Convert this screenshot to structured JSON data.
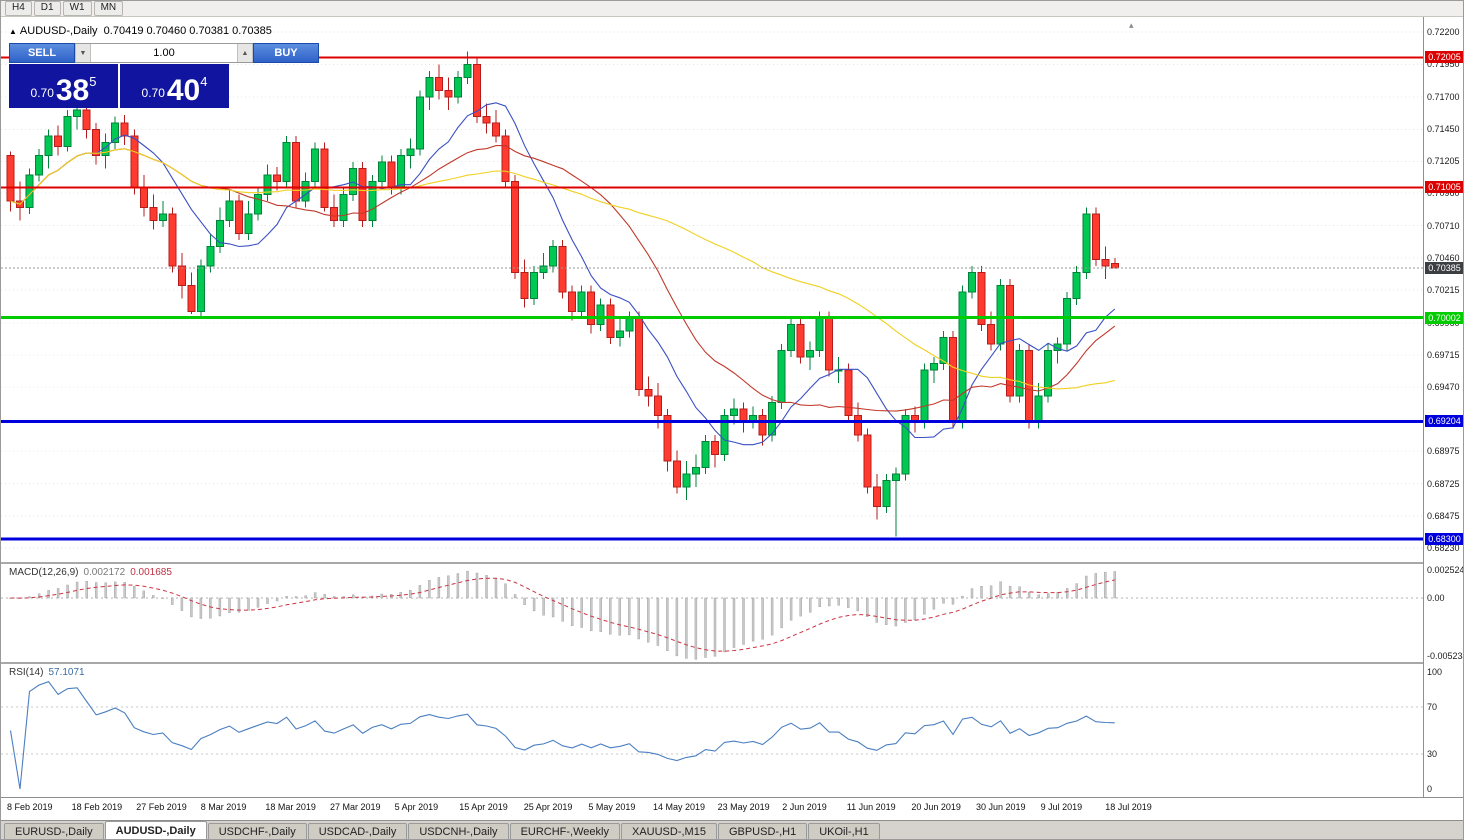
{
  "toolbar": {
    "items": [
      "H4",
      "D1",
      "W1",
      "MN"
    ]
  },
  "chart": {
    "title_symbol": "AUDUSD-,Daily",
    "title_ohlc": "0.70419 0.70460 0.70381 0.70385"
  },
  "icons": {
    "title_bullet": "▲",
    "volume_down": "▼",
    "volume_up": "▲",
    "chart_shift": "▴"
  },
  "trade_panel": {
    "sell_label": "SELL",
    "buy_label": "BUY",
    "volume": "1.00",
    "sell_price_prefix": "0.70",
    "sell_price_big": "38",
    "sell_price_sup": "5",
    "buy_price_prefix": "0.70",
    "buy_price_big": "40",
    "buy_price_sup": "4"
  },
  "chart_data": {
    "type": "candlestick",
    "symbol": "AUDUSD",
    "timeframe": "Daily",
    "colors": {
      "candle_up": "#00c853",
      "candle_up_border": "#00823a",
      "candle_down": "#ff3b30",
      "candle_down_border": "#b71c1c",
      "grid": "#e4e4e4"
    },
    "price_axis_ticks": [
      "0.72200",
      "0.71950",
      "0.71700",
      "0.71450",
      "0.71205",
      "0.70960",
      "0.70710",
      "0.70460",
      "0.70215",
      "0.69960",
      "0.69715",
      "0.69470",
      "0.68975",
      "0.68725",
      "0.68475",
      "0.68230"
    ],
    "hlines": [
      {
        "value": 0.72005,
        "label": "0.72005",
        "color": "#dd0000",
        "width": 2
      },
      {
        "value": 0.71005,
        "label": "0.71005",
        "color": "#dd0000",
        "width": 2
      },
      {
        "value": 0.70002,
        "label": "0.70002",
        "color": "#00cc00",
        "width": 3
      },
      {
        "value": 0.69204,
        "label": "0.69204",
        "color": "#0000dd",
        "width": 3
      },
      {
        "value": 0.683,
        "label": "0.68300",
        "color": "#0000dd",
        "width": 3
      }
    ],
    "current_price": {
      "value": 0.70385,
      "label": "0.70385",
      "color": "#3c3f41"
    },
    "moving_averages": [
      {
        "period": 10,
        "color": "#3a4fc4"
      },
      {
        "period": 21,
        "color": "#c0392b"
      },
      {
        "period": 50,
        "color": "#f0d020"
      }
    ],
    "candles": [
      [
        0.7125,
        0.7128,
        0.7082,
        0.709
      ],
      [
        0.709,
        0.7105,
        0.7075,
        0.7085
      ],
      [
        0.7085,
        0.7115,
        0.708,
        0.711
      ],
      [
        0.711,
        0.713,
        0.7105,
        0.7125
      ],
      [
        0.7125,
        0.7145,
        0.7115,
        0.714
      ],
      [
        0.714,
        0.7148,
        0.7125,
        0.7132
      ],
      [
        0.7132,
        0.716,
        0.7128,
        0.7155
      ],
      [
        0.7155,
        0.7165,
        0.7145,
        0.716
      ],
      [
        0.716,
        0.7168,
        0.7138,
        0.7145
      ],
      [
        0.7145,
        0.715,
        0.7118,
        0.7125
      ],
      [
        0.7125,
        0.7142,
        0.7115,
        0.7135
      ],
      [
        0.7135,
        0.7155,
        0.713,
        0.715
      ],
      [
        0.715,
        0.7156,
        0.7133,
        0.714
      ],
      [
        0.714,
        0.7145,
        0.7095,
        0.71
      ],
      [
        0.71,
        0.711,
        0.7078,
        0.7085
      ],
      [
        0.7085,
        0.7095,
        0.7068,
        0.7075
      ],
      [
        0.7075,
        0.709,
        0.707,
        0.708
      ],
      [
        0.708,
        0.7085,
        0.7035,
        0.704
      ],
      [
        0.704,
        0.705,
        0.7015,
        0.7025
      ],
      [
        0.7025,
        0.7035,
        0.7003,
        0.7005
      ],
      [
        0.7005,
        0.7045,
        0.7,
        0.704
      ],
      [
        0.704,
        0.7065,
        0.7035,
        0.7055
      ],
      [
        0.7055,
        0.7085,
        0.705,
        0.7075
      ],
      [
        0.7075,
        0.7098,
        0.707,
        0.709
      ],
      [
        0.709,
        0.7095,
        0.706,
        0.7065
      ],
      [
        0.7065,
        0.709,
        0.706,
        0.708
      ],
      [
        0.708,
        0.71,
        0.7075,
        0.7095
      ],
      [
        0.7095,
        0.7118,
        0.709,
        0.711
      ],
      [
        0.711,
        0.7116,
        0.7098,
        0.7105
      ],
      [
        0.7105,
        0.714,
        0.71,
        0.7135
      ],
      [
        0.7135,
        0.714,
        0.7085,
        0.709
      ],
      [
        0.709,
        0.7112,
        0.7085,
        0.7105
      ],
      [
        0.7105,
        0.7135,
        0.71,
        0.713
      ],
      [
        0.713,
        0.7135,
        0.7082,
        0.7085
      ],
      [
        0.7085,
        0.7095,
        0.707,
        0.7075
      ],
      [
        0.7075,
        0.71,
        0.707,
        0.7095
      ],
      [
        0.7095,
        0.712,
        0.709,
        0.7115
      ],
      [
        0.7115,
        0.712,
        0.707,
        0.7075
      ],
      [
        0.7075,
        0.711,
        0.707,
        0.7105
      ],
      [
        0.7105,
        0.7125,
        0.71,
        0.712
      ],
      [
        0.712,
        0.7125,
        0.7095,
        0.71
      ],
      [
        0.71,
        0.713,
        0.7095,
        0.7125
      ],
      [
        0.7125,
        0.7138,
        0.7115,
        0.713
      ],
      [
        0.713,
        0.7175,
        0.7125,
        0.717
      ],
      [
        0.717,
        0.719,
        0.716,
        0.7185
      ],
      [
        0.7185,
        0.7195,
        0.7168,
        0.7175
      ],
      [
        0.7175,
        0.7185,
        0.716,
        0.717
      ],
      [
        0.717,
        0.719,
        0.7165,
        0.7185
      ],
      [
        0.7185,
        0.7205,
        0.718,
        0.7195
      ],
      [
        0.7195,
        0.72,
        0.715,
        0.7155
      ],
      [
        0.7155,
        0.7165,
        0.7142,
        0.715
      ],
      [
        0.715,
        0.716,
        0.7135,
        0.714
      ],
      [
        0.714,
        0.7145,
        0.71,
        0.7105
      ],
      [
        0.7105,
        0.711,
        0.703,
        0.7035
      ],
      [
        0.7035,
        0.7045,
        0.7008,
        0.7015
      ],
      [
        0.7015,
        0.704,
        0.701,
        0.7035
      ],
      [
        0.7035,
        0.705,
        0.703,
        0.704
      ],
      [
        0.704,
        0.706,
        0.7035,
        0.7055
      ],
      [
        0.7055,
        0.706,
        0.7015,
        0.702
      ],
      [
        0.702,
        0.7025,
        0.6998,
        0.7005
      ],
      [
        0.7005,
        0.7025,
        0.7,
        0.702
      ],
      [
        0.702,
        0.7025,
        0.6988,
        0.6995
      ],
      [
        0.6995,
        0.7015,
        0.699,
        0.701
      ],
      [
        0.701,
        0.7015,
        0.698,
        0.6985
      ],
      [
        0.6985,
        0.7,
        0.6978,
        0.699
      ],
      [
        0.699,
        0.7005,
        0.6985,
        0.7
      ],
      [
        0.7,
        0.7005,
        0.694,
        0.6945
      ],
      [
        0.6945,
        0.6955,
        0.6932,
        0.694
      ],
      [
        0.694,
        0.695,
        0.6915,
        0.6925
      ],
      [
        0.6925,
        0.693,
        0.6882,
        0.689
      ],
      [
        0.689,
        0.6898,
        0.6865,
        0.687
      ],
      [
        0.687,
        0.689,
        0.686,
        0.688
      ],
      [
        0.688,
        0.6895,
        0.687,
        0.6885
      ],
      [
        0.6885,
        0.691,
        0.688,
        0.6905
      ],
      [
        0.6905,
        0.691,
        0.6885,
        0.6895
      ],
      [
        0.6895,
        0.693,
        0.689,
        0.6925
      ],
      [
        0.6925,
        0.6938,
        0.6918,
        0.693
      ],
      [
        0.693,
        0.6935,
        0.6912,
        0.692
      ],
      [
        0.692,
        0.6932,
        0.6915,
        0.6925
      ],
      [
        0.6925,
        0.693,
        0.6902,
        0.691
      ],
      [
        0.691,
        0.694,
        0.6905,
        0.6935
      ],
      [
        0.6935,
        0.698,
        0.693,
        0.6975
      ],
      [
        0.6975,
        0.7,
        0.697,
        0.6995
      ],
      [
        0.6995,
        0.7,
        0.6965,
        0.697
      ],
      [
        0.697,
        0.6982,
        0.696,
        0.6975
      ],
      [
        0.6975,
        0.7005,
        0.697,
        0.7
      ],
      [
        0.7,
        0.7005,
        0.6955,
        0.696
      ],
      [
        0.696,
        0.697,
        0.695,
        0.696
      ],
      [
        0.696,
        0.6965,
        0.692,
        0.6925
      ],
      [
        0.6925,
        0.6935,
        0.6905,
        0.691
      ],
      [
        0.691,
        0.6915,
        0.6865,
        0.687
      ],
      [
        0.687,
        0.688,
        0.6845,
        0.6855
      ],
      [
        0.6855,
        0.688,
        0.685,
        0.6875
      ],
      [
        0.6875,
        0.6885,
        0.6832,
        0.688
      ],
      [
        0.688,
        0.693,
        0.6875,
        0.6925
      ],
      [
        0.6925,
        0.6932,
        0.6912,
        0.692
      ],
      [
        0.692,
        0.6965,
        0.6915,
        0.696
      ],
      [
        0.696,
        0.697,
        0.695,
        0.6965
      ],
      [
        0.6965,
        0.699,
        0.696,
        0.6985
      ],
      [
        0.6985,
        0.699,
        0.6915,
        0.692
      ],
      [
        0.692,
        0.7025,
        0.6915,
        0.702
      ],
      [
        0.702,
        0.704,
        0.7015,
        0.7035
      ],
      [
        0.7035,
        0.704,
        0.699,
        0.6995
      ],
      [
        0.6995,
        0.7005,
        0.6975,
        0.698
      ],
      [
        0.698,
        0.703,
        0.6975,
        0.7025
      ],
      [
        0.7025,
        0.703,
        0.6935,
        0.694
      ],
      [
        0.694,
        0.698,
        0.6935,
        0.6975
      ],
      [
        0.6975,
        0.698,
        0.6915,
        0.692
      ],
      [
        0.692,
        0.695,
        0.6915,
        0.694
      ],
      [
        0.694,
        0.698,
        0.6935,
        0.6975
      ],
      [
        0.6975,
        0.6985,
        0.6965,
        0.698
      ],
      [
        0.698,
        0.702,
        0.6975,
        0.7015
      ],
      [
        0.7015,
        0.704,
        0.701,
        0.7035
      ],
      [
        0.7035,
        0.7085,
        0.703,
        0.708
      ],
      [
        0.708,
        0.7085,
        0.704,
        0.7045
      ],
      [
        0.7045,
        0.7055,
        0.703,
        0.704
      ],
      [
        0.70419,
        0.7046,
        0.70381,
        0.70385
      ]
    ],
    "date_labels": [
      "8 Feb 2019",
      "18 Feb 2019",
      "27 Feb 2019",
      "8 Mar 2019",
      "18 Mar 2019",
      "27 Mar 2019",
      "5 Apr 2019",
      "15 Apr 2019",
      "25 Apr 2019",
      "5 May 2019",
      "14 May 2019",
      "23 May 2019",
      "2 Jun 2019",
      "11 Jun 2019",
      "20 Jun 2019",
      "30 Jun 2019",
      "9 Jul 2019",
      "18 Jul 2019"
    ],
    "macd": {
      "label": "MACD(12,26,9)",
      "value_main": "0.002172",
      "value_signal": "0.001685",
      "axis_max": 0.002524,
      "axis_min": -0.005234,
      "axis_max_label": "0.002524",
      "axis_zero_label": "0.00",
      "axis_min_label": "-0.005234",
      "histogram_color": "#c9c9c9",
      "signal_color": "#cc3344"
    },
    "rsi": {
      "label": "RSI(14)",
      "value": "57.1071",
      "line_color": "#4a7fc1",
      "axis_labels": [
        "100",
        "70",
        "30",
        "0"
      ],
      "axis_values": [
        100,
        70,
        30,
        0
      ],
      "levels": [
        70,
        30
      ]
    }
  },
  "tabs": [
    {
      "label": "EURUSD-,Daily",
      "active": false
    },
    {
      "label": "AUDUSD-,Daily",
      "active": true
    },
    {
      "label": "USDCHF-,Daily",
      "active": false
    },
    {
      "label": "USDCAD-,Daily",
      "active": false
    },
    {
      "label": "USDCNH-,Daily",
      "active": false
    },
    {
      "label": "EURCHF-,Weekly",
      "active": false
    },
    {
      "label": "XAUUSD-,M15",
      "active": false
    },
    {
      "label": "GBPUSD-,H1",
      "active": false
    },
    {
      "label": "UKOil-,H1",
      "active": false
    }
  ]
}
